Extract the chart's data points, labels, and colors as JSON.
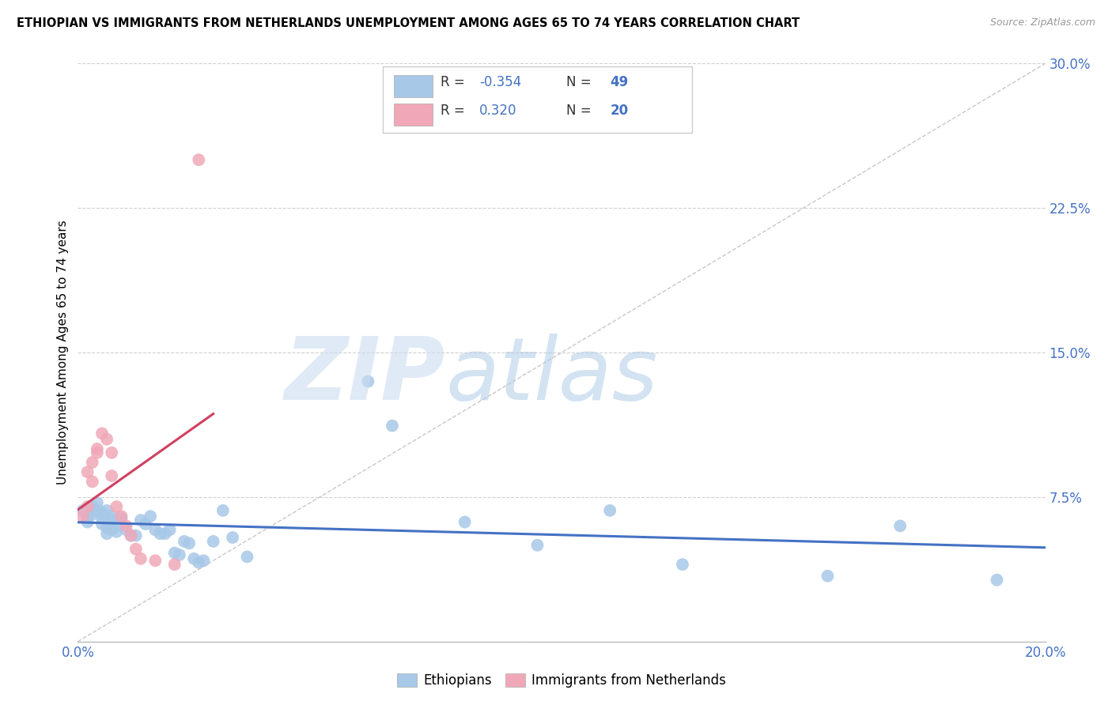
{
  "title": "ETHIOPIAN VS IMMIGRANTS FROM NETHERLANDS UNEMPLOYMENT AMONG AGES 65 TO 74 YEARS CORRELATION CHART",
  "source": "Source: ZipAtlas.com",
  "ylabel": "Unemployment Among Ages 65 to 74 years",
  "xlim": [
    0.0,
    0.2
  ],
  "ylim": [
    0.0,
    0.3
  ],
  "xticks": [
    0.0,
    0.04,
    0.08,
    0.12,
    0.16,
    0.2
  ],
  "yticks": [
    0.0,
    0.075,
    0.15,
    0.225,
    0.3
  ],
  "ytick_labels_right": [
    "",
    "7.5%",
    "15.0%",
    "22.5%",
    "30.0%"
  ],
  "ethiopians_color": "#a8c8e8",
  "netherlands_color": "#f0a8b8",
  "trend_line_blue_color": "#4472c4",
  "trend_line_pink_color": "#d04060",
  "diagonal_line_color": "#c8c8c8",
  "ethiopians_x": [
    0.001,
    0.002,
    0.002,
    0.003,
    0.003,
    0.004,
    0.004,
    0.005,
    0.005,
    0.005,
    0.006,
    0.006,
    0.006,
    0.007,
    0.007,
    0.007,
    0.008,
    0.008,
    0.009,
    0.01,
    0.011,
    0.012,
    0.013,
    0.014,
    0.015,
    0.016,
    0.017,
    0.018,
    0.019,
    0.02,
    0.021,
    0.022,
    0.023,
    0.024,
    0.025,
    0.026,
    0.028,
    0.03,
    0.032,
    0.035,
    0.06,
    0.065,
    0.08,
    0.095,
    0.11,
    0.125,
    0.155,
    0.17,
    0.19
  ],
  "ethiopians_y": [
    0.068,
    0.065,
    0.062,
    0.07,
    0.066,
    0.068,
    0.072,
    0.067,
    0.064,
    0.061,
    0.068,
    0.059,
    0.056,
    0.065,
    0.058,
    0.063,
    0.06,
    0.057,
    0.064,
    0.058,
    0.055,
    0.055,
    0.063,
    0.061,
    0.065,
    0.058,
    0.056,
    0.056,
    0.058,
    0.046,
    0.045,
    0.052,
    0.051,
    0.043,
    0.041,
    0.042,
    0.052,
    0.068,
    0.054,
    0.044,
    0.135,
    0.112,
    0.062,
    0.05,
    0.068,
    0.04,
    0.034,
    0.06,
    0.032
  ],
  "netherlands_x": [
    0.001,
    0.002,
    0.002,
    0.003,
    0.003,
    0.004,
    0.004,
    0.005,
    0.006,
    0.007,
    0.007,
    0.008,
    0.009,
    0.01,
    0.011,
    0.012,
    0.013,
    0.016,
    0.02,
    0.025
  ],
  "netherlands_y": [
    0.065,
    0.07,
    0.088,
    0.083,
    0.093,
    0.098,
    0.1,
    0.108,
    0.105,
    0.098,
    0.086,
    0.07,
    0.065,
    0.06,
    0.055,
    0.048,
    0.043,
    0.042,
    0.04,
    0.25
  ]
}
